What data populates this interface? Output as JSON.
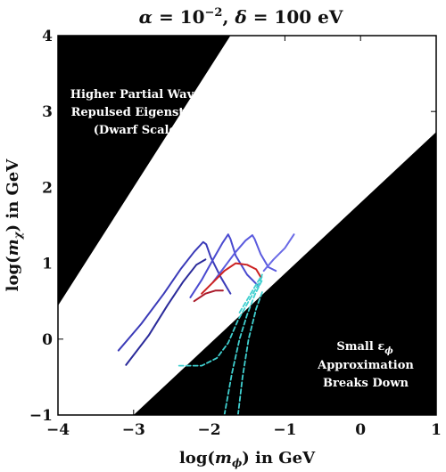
{
  "chart_data": {
    "type": "line",
    "title_parts": {
      "alpha_sym": "α",
      "alpha_eq": " = 10",
      "alpha_exp": "−2",
      "sep": ",  ",
      "delta_sym": "δ",
      "delta_eq": " = 100 eV"
    },
    "xlabel_parts": {
      "pre": "log(",
      "var": "m",
      "sub": "ϕ",
      "post": ") in GeV"
    },
    "ylabel_parts": {
      "pre": "log(",
      "var": "m",
      "sub": "χ",
      "post": ") in GeV"
    },
    "xlim": [
      -4,
      1
    ],
    "ylim": [
      -1,
      4
    ],
    "x_ticks": [
      -4,
      -3,
      -2,
      -1,
      0,
      1
    ],
    "y_ticks": [
      -1,
      0,
      1,
      2,
      3,
      4
    ],
    "x_tick_labels": [
      "−4",
      "−3",
      "−2",
      "−1",
      "0",
      "1"
    ],
    "y_tick_labels": [
      "−1",
      "0",
      "1",
      "2",
      "3",
      "4"
    ],
    "grid": false,
    "regions": [
      {
        "name": "upper-excluded-region",
        "fill": "#000000",
        "polygon": [
          [
            -4,
            -1
          ],
          [
            -4,
            0.44
          ],
          [
            -1.72,
            4
          ],
          [
            -4,
            4
          ]
        ],
        "label_lines": [
          "Higher Partial Waves,",
          "Repulsed Eigenstates",
          "(Dwarf Scales)"
        ],
        "label_anchor": [
          -2.3,
          3.05
        ]
      },
      {
        "name": "lower-excluded-region",
        "fill": "#000000",
        "polygon": [
          [
            -3.0,
            -1
          ],
          [
            1,
            2.73
          ],
          [
            1,
            -1
          ]
        ],
        "label_lines": [
          "Small ε",
          "Approximation",
          "Breaks Down"
        ],
        "label_sub": "ϕ",
        "label_anchor": [
          0.07,
          -0.05
        ]
      }
    ],
    "series": [
      {
        "color": "#2a2a9a",
        "style": "solid",
        "points": [
          [
            -3.1,
            -0.34
          ],
          [
            -2.8,
            0.05
          ],
          [
            -2.55,
            0.45
          ],
          [
            -2.35,
            0.75
          ],
          [
            -2.17,
            0.98
          ],
          [
            -2.05,
            1.05
          ]
        ]
      },
      {
        "color": "#3a3ab8",
        "style": "solid",
        "points": [
          [
            -3.2,
            -0.15
          ],
          [
            -2.9,
            0.2
          ],
          [
            -2.6,
            0.6
          ],
          [
            -2.38,
            0.92
          ],
          [
            -2.2,
            1.15
          ],
          [
            -2.08,
            1.28
          ],
          [
            -2.04,
            1.25
          ],
          [
            -1.98,
            1.08
          ],
          [
            -1.85,
            0.82
          ],
          [
            -1.72,
            0.6
          ]
        ]
      },
      {
        "color": "#4a4ad0",
        "style": "solid",
        "points": [
          [
            -2.25,
            0.55
          ],
          [
            -2.1,
            0.78
          ],
          [
            -1.95,
            1.05
          ],
          [
            -1.83,
            1.26
          ],
          [
            -1.75,
            1.38
          ],
          [
            -1.72,
            1.32
          ],
          [
            -1.65,
            1.1
          ],
          [
            -1.5,
            0.85
          ],
          [
            -1.35,
            0.7
          ]
        ]
      },
      {
        "color": "#5a5ade",
        "style": "solid",
        "points": [
          [
            -1.95,
            0.75
          ],
          [
            -1.8,
            0.95
          ],
          [
            -1.65,
            1.15
          ],
          [
            -1.52,
            1.3
          ],
          [
            -1.43,
            1.37
          ],
          [
            -1.4,
            1.32
          ],
          [
            -1.32,
            1.12
          ],
          [
            -1.22,
            0.95
          ],
          [
            -1.12,
            0.9
          ]
        ]
      },
      {
        "color": "#6a6ae6",
        "style": "solid",
        "points": [
          [
            -1.28,
            0.9
          ],
          [
            -1.15,
            1.05
          ],
          [
            -1.0,
            1.2
          ],
          [
            -0.88,
            1.38
          ]
        ]
      },
      {
        "color": "#cc2222",
        "style": "solid",
        "points": [
          [
            -2.1,
            0.6
          ],
          [
            -1.95,
            0.75
          ],
          [
            -1.8,
            0.9
          ],
          [
            -1.65,
            1.0
          ],
          [
            -1.5,
            0.98
          ],
          [
            -1.38,
            0.92
          ],
          [
            -1.32,
            0.82
          ]
        ]
      },
      {
        "color": "#aa1a2a",
        "style": "solid",
        "points": [
          [
            -2.2,
            0.5
          ],
          [
            -2.05,
            0.6
          ],
          [
            -1.92,
            0.64
          ],
          [
            -1.82,
            0.64
          ]
        ]
      },
      {
        "color": "#40d0d0",
        "style": "dashed",
        "points": [
          [
            -2.4,
            -0.35
          ],
          [
            -2.1,
            -0.35
          ],
          [
            -1.9,
            -0.25
          ],
          [
            -1.75,
            -0.05
          ],
          [
            -1.62,
            0.25
          ],
          [
            -1.45,
            0.55
          ],
          [
            -1.35,
            0.72
          ],
          [
            -1.3,
            0.83
          ]
        ]
      },
      {
        "color": "#40d0d0",
        "style": "dashed",
        "points": [
          [
            -1.8,
            -1.0
          ],
          [
            -1.7,
            -0.45
          ],
          [
            -1.6,
            0.0
          ],
          [
            -1.5,
            0.32
          ],
          [
            -1.4,
            0.58
          ],
          [
            -1.3,
            0.78
          ]
        ]
      },
      {
        "color": "#40d0d0",
        "style": "dashed",
        "points": [
          [
            -1.62,
            -1.0
          ],
          [
            -1.56,
            -0.5
          ],
          [
            -1.48,
            0.0
          ],
          [
            -1.38,
            0.4
          ],
          [
            -1.3,
            0.62
          ]
        ]
      },
      {
        "color": "#40d0d0",
        "style": "dashed",
        "points": [
          [
            -1.6,
            0.35
          ],
          [
            -1.48,
            0.55
          ],
          [
            -1.38,
            0.72
          ],
          [
            -1.3,
            0.85
          ]
        ]
      }
    ]
  }
}
